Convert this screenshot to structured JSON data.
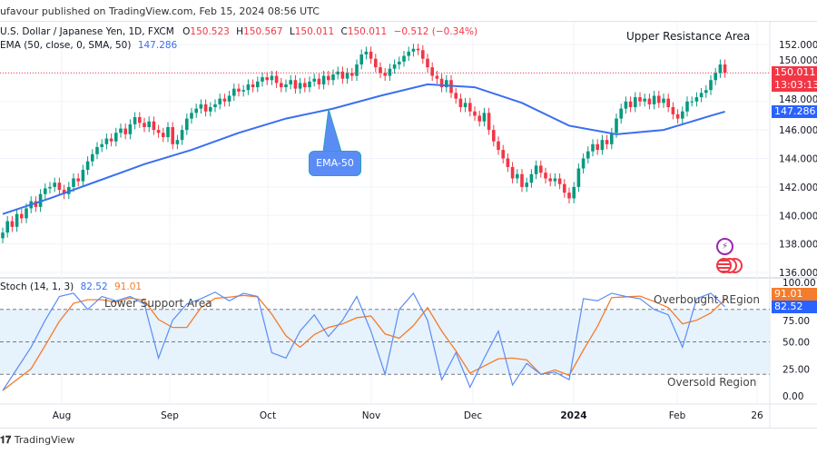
{
  "header": {
    "published": "ufavour published on TradingView.com, Feb 15, 2024 08:56 UTC"
  },
  "legend": {
    "symbol": "U.S. Dollar / Japanese Yen, 1D, FXCM",
    "o_label": "O",
    "o": "150.523",
    "h_label": "H",
    "h": "150.567",
    "l_label": "L",
    "l": "150.011",
    "c_label": "C",
    "c": "150.011",
    "change": "−0.512 (−0.34%)",
    "ema_label": "EMA (50, close, 0, SMA, 50)",
    "ema_value": "147.286",
    "stoch_label": "Stoch (14, 1, 3)",
    "stoch_k": "82.52",
    "stoch_d": "91.01"
  },
  "annotations": {
    "upper_resistance": "Upper Resistance Area",
    "ema_callout": "EMA-50",
    "lower_support": "Lower Support Area",
    "overbought": "Overbought REgion",
    "oversold": "Oversold Region"
  },
  "price_tags": {
    "last_price": "150.011",
    "countdown": "13:03:13",
    "ema": "147.286",
    "stoch_d": "91.01",
    "stoch_k": "82.52"
  },
  "footer": {
    "brand": "TradingView"
  },
  "icons": [
    "lightning-icon",
    "us-flag-event-icon"
  ],
  "colors": {
    "up": "#089981",
    "down": "#f23645",
    "ema": "#3a6ff0",
    "stoch_k": "#5b8cf5",
    "stoch_d": "#f57c2a",
    "band": "#e6f2fc"
  },
  "chart_data": [
    {
      "type": "candlestick",
      "title": "U.S. Dollar / Japanese Yen, 1D, FXCM",
      "x_tick_labels": [
        "Aug",
        "Sep",
        "Oct",
        "Nov",
        "Dec",
        "2024",
        "Feb",
        "26"
      ],
      "y_tick_labels": [
        "152.000",
        "150.000",
        "148.000",
        "146.000",
        "144.000",
        "142.000",
        "140.000",
        "138.000",
        "136.000"
      ],
      "ylim": [
        136,
        152
      ],
      "grid": true,
      "closes": [
        138.8,
        139.6,
        139.2,
        140.1,
        139.8,
        140.5,
        141.0,
        140.6,
        141.5,
        141.9,
        142.0,
        142.3,
        141.8,
        141.5,
        142.0,
        142.6,
        142.4,
        143.2,
        143.8,
        144.3,
        144.8,
        145.0,
        145.4,
        145.2,
        145.8,
        146.1,
        145.7,
        146.4,
        146.9,
        146.5,
        146.2,
        146.6,
        146.0,
        145.8,
        145.5,
        146.2,
        145.0,
        145.3,
        146.0,
        146.8,
        147.2,
        147.5,
        147.8,
        147.3,
        147.6,
        147.8,
        148.2,
        148.0,
        148.4,
        148.9,
        148.7,
        148.8,
        149.2,
        149.0,
        149.4,
        149.7,
        149.5,
        149.8,
        149.3,
        149.0,
        149.2,
        149.5,
        148.9,
        149.3,
        149.0,
        149.4,
        149.6,
        149.2,
        149.8,
        149.5,
        149.9,
        150.1,
        149.6,
        150.0,
        149.8,
        150.6,
        151.3,
        151.5,
        151.0,
        150.4,
        150.0,
        149.8,
        150.3,
        150.6,
        150.8,
        151.2,
        151.5,
        151.7,
        151.6,
        151.0,
        150.4,
        149.8,
        149.6,
        149.0,
        149.5,
        148.6,
        148.2,
        147.6,
        147.9,
        147.3,
        147.0,
        146.6,
        147.2,
        146.0,
        145.2,
        144.6,
        144.0,
        143.4,
        142.6,
        142.9,
        142.0,
        142.3,
        142.9,
        143.5,
        143.0,
        142.6,
        142.4,
        142.6,
        142.2,
        141.6,
        141.2,
        142.0,
        143.3,
        144.0,
        144.5,
        145.0,
        144.6,
        145.3,
        145.0,
        145.8,
        146.8,
        147.5,
        148.0,
        147.6,
        148.3,
        148.0,
        148.2,
        147.8,
        148.4,
        147.9,
        148.2,
        147.6,
        147.1,
        146.8,
        147.3,
        148.0,
        148.0,
        148.3,
        148.6,
        148.8,
        149.5,
        150.0,
        150.6,
        150.011
      ],
      "ema50_every_10_bars": [
        140.1,
        141.2,
        142.4,
        143.6,
        144.6,
        145.8,
        146.8,
        147.5,
        148.4,
        149.2,
        149.0,
        147.9,
        146.3,
        145.7,
        146.0,
        147.0,
        147.286
      ]
    },
    {
      "type": "line",
      "title": "Stoch (14, 1, 3)",
      "ylim": [
        0,
        100
      ],
      "y_tick_labels": [
        "100.00",
        "75.00",
        "50.00",
        "25.00",
        "0.00"
      ],
      "levels": [
        80,
        50,
        20
      ],
      "series": [
        {
          "name": "%K",
          "values_every_3_bars": [
            5,
            25,
            45,
            70,
            92,
            95,
            80,
            92,
            88,
            92,
            85,
            35,
            70,
            85,
            90,
            96,
            88,
            95,
            92,
            40,
            35,
            60,
            75,
            55,
            70,
            92,
            60,
            20,
            80,
            95,
            70,
            15,
            40,
            8,
            35,
            60,
            10,
            30,
            20,
            22,
            15,
            90,
            88,
            95,
            92,
            90,
            80,
            75,
            45,
            90,
            95,
            82.52
          ]
        }
      ]
    }
  ]
}
